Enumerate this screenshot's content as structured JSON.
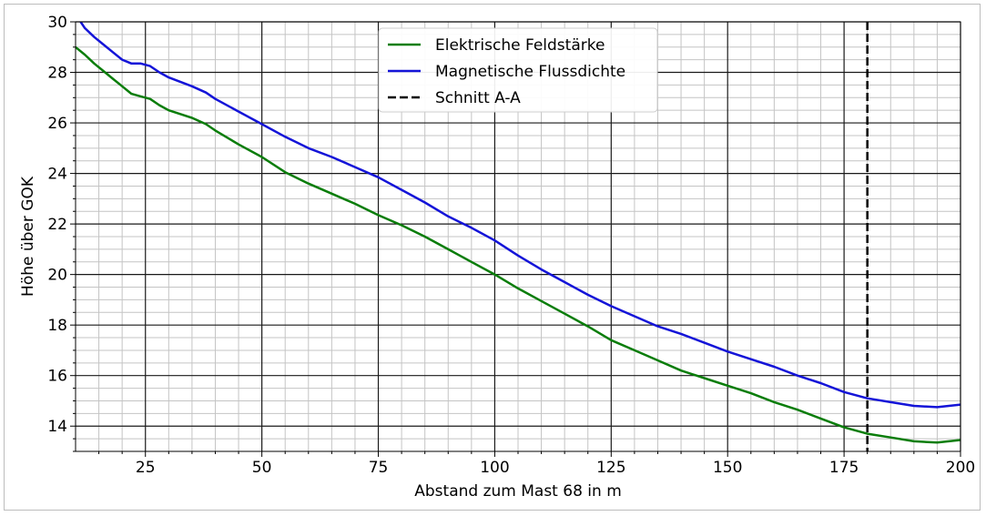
{
  "chart_data": {
    "type": "line",
    "title": "",
    "xlabel": "Abstand zum Mast 68 in m",
    "ylabel": "Höhe über GOK",
    "xlim": [
      10,
      200
    ],
    "ylim": [
      13,
      30
    ],
    "x_ticks": [
      25,
      50,
      75,
      100,
      125,
      150,
      175,
      200
    ],
    "y_ticks": [
      14,
      16,
      18,
      20,
      22,
      24,
      26,
      28,
      30
    ],
    "grid": "major and minor",
    "legend_position": "top-center",
    "series": [
      {
        "name": "Elektrische Feldstärke",
        "color": "#0a7d0a",
        "style": "solid",
        "points": [
          [
            10,
            29.0
          ],
          [
            12,
            28.7
          ],
          [
            14,
            28.35
          ],
          [
            16,
            28.05
          ],
          [
            18,
            27.75
          ],
          [
            20,
            27.45
          ],
          [
            22,
            27.15
          ],
          [
            24,
            27.05
          ],
          [
            26,
            26.95
          ],
          [
            28,
            26.7
          ],
          [
            30,
            26.5
          ],
          [
            35,
            26.2
          ],
          [
            38,
            25.95
          ],
          [
            40,
            25.7
          ],
          [
            45,
            25.15
          ],
          [
            50,
            24.65
          ],
          [
            55,
            24.05
          ],
          [
            60,
            23.6
          ],
          [
            65,
            23.2
          ],
          [
            70,
            22.8
          ],
          [
            75,
            22.35
          ],
          [
            80,
            21.95
          ],
          [
            85,
            21.5
          ],
          [
            90,
            21.0
          ],
          [
            95,
            20.5
          ],
          [
            100,
            20.0
          ],
          [
            105,
            19.45
          ],
          [
            110,
            18.95
          ],
          [
            115,
            18.45
          ],
          [
            120,
            17.95
          ],
          [
            125,
            17.4
          ],
          [
            130,
            17.0
          ],
          [
            135,
            16.6
          ],
          [
            140,
            16.2
          ],
          [
            145,
            15.9
          ],
          [
            150,
            15.6
          ],
          [
            155,
            15.3
          ],
          [
            160,
            14.95
          ],
          [
            165,
            14.65
          ],
          [
            170,
            14.3
          ],
          [
            175,
            13.95
          ],
          [
            180,
            13.7
          ],
          [
            185,
            13.55
          ],
          [
            190,
            13.4
          ],
          [
            195,
            13.35
          ],
          [
            200,
            13.45
          ]
        ]
      },
      {
        "name": "Magnetische Flussdichte",
        "color": "#1414d8",
        "style": "solid",
        "points": [
          [
            10,
            30.3
          ],
          [
            12,
            29.75
          ],
          [
            14,
            29.4
          ],
          [
            16,
            29.1
          ],
          [
            18,
            28.8
          ],
          [
            20,
            28.5
          ],
          [
            22,
            28.35
          ],
          [
            24,
            28.35
          ],
          [
            26,
            28.25
          ],
          [
            28,
            28.0
          ],
          [
            30,
            27.8
          ],
          [
            35,
            27.45
          ],
          [
            38,
            27.2
          ],
          [
            40,
            26.95
          ],
          [
            45,
            26.45
          ],
          [
            50,
            25.95
          ],
          [
            55,
            25.45
          ],
          [
            60,
            25.0
          ],
          [
            65,
            24.65
          ],
          [
            70,
            24.25
          ],
          [
            75,
            23.85
          ],
          [
            80,
            23.35
          ],
          [
            85,
            22.85
          ],
          [
            90,
            22.3
          ],
          [
            95,
            21.85
          ],
          [
            100,
            21.35
          ],
          [
            105,
            20.75
          ],
          [
            110,
            20.2
          ],
          [
            115,
            19.7
          ],
          [
            120,
            19.2
          ],
          [
            125,
            18.75
          ],
          [
            130,
            18.35
          ],
          [
            135,
            17.95
          ],
          [
            140,
            17.65
          ],
          [
            145,
            17.3
          ],
          [
            150,
            16.95
          ],
          [
            155,
            16.65
          ],
          [
            160,
            16.35
          ],
          [
            165,
            16.0
          ],
          [
            170,
            15.7
          ],
          [
            175,
            15.35
          ],
          [
            180,
            15.1
          ],
          [
            185,
            14.95
          ],
          [
            190,
            14.8
          ],
          [
            195,
            14.75
          ],
          [
            200,
            14.85
          ]
        ]
      },
      {
        "name": "Schnitt A-A",
        "color": "#000000",
        "style": "dashed",
        "vertical_x": 180
      }
    ]
  }
}
